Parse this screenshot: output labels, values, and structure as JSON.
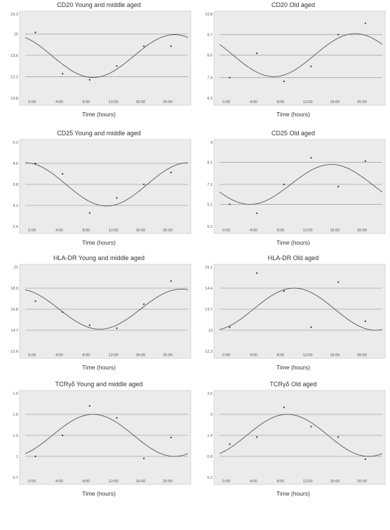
{
  "chart_data": [
    {
      "type": "scatter",
      "title": "CD20 Young and middle aged",
      "xlabel": "Time (hours)",
      "ylabel": "",
      "xticks": [
        "0:00",
        "4:00",
        "8:00",
        "12:00",
        "16:00",
        "20:00"
      ],
      "yticks": [
        10.8,
        12.2,
        13.6,
        15,
        16.3
      ],
      "xlim": [
        0,
        24
      ],
      "ylim": [
        10.8,
        16.3
      ],
      "grid": "horizontal",
      "points": {
        "x": [
          1.5,
          5.5,
          9.5,
          13.5,
          17.5,
          21.5
        ],
        "y": [
          15.1,
          12.4,
          12.0,
          12.9,
          14.2,
          14.2
        ]
      },
      "fit": {
        "mesor": 13.55,
        "amplitude": 1.4,
        "acrophase": 22.0,
        "period": 24
      }
    },
    {
      "type": "scatter",
      "title": "CD20 Old aged",
      "xlabel": "Time (hours)",
      "ylabel": "",
      "xticks": [
        "0:00",
        "4:00",
        "8:00",
        "12:00",
        "16:00",
        "20:00"
      ],
      "yticks": [
        6.3,
        7.4,
        8.6,
        9.7,
        10.8
      ],
      "xlim": [
        0,
        24
      ],
      "ylim": [
        6.3,
        10.8
      ],
      "grid": "horizontal",
      "points": {
        "x": [
          1.5,
          5.5,
          9.5,
          13.5,
          17.5,
          21.5
        ],
        "y": [
          7.4,
          8.7,
          7.2,
          8.0,
          9.7,
          10.3
        ]
      },
      "fit": {
        "mesor": 8.6,
        "amplitude": 1.15,
        "acrophase": 20.0,
        "period": 24
      }
    },
    {
      "type": "scatter",
      "title": "CD25 Young and middle aged",
      "xlabel": "Time (hours)",
      "ylabel": "",
      "xticks": [
        "0:00",
        "4:00",
        "8:00",
        "12:00",
        "16:00",
        "20:00"
      ],
      "yticks": [
        2.4,
        3.1,
        3.8,
        4.5,
        5.2
      ],
      "xlim": [
        0,
        24
      ],
      "ylim": [
        2.4,
        5.2
      ],
      "grid": "horizontal",
      "points": {
        "x": [
          1.5,
          5.5,
          9.5,
          13.5,
          17.5,
          21.5
        ],
        "y": [
          4.5,
          4.15,
          2.85,
          3.35,
          3.8,
          4.2
        ]
      },
      "fit": {
        "mesor": 3.8,
        "amplitude": 0.72,
        "acrophase": 0.0,
        "period": 24
      }
    },
    {
      "type": "scatter",
      "title": "CD25 Old aged",
      "xlabel": "Time (hours)",
      "ylabel": "",
      "xticks": [
        "0:00",
        "4:00",
        "8:00",
        "12:00",
        "16:00",
        "20:00"
      ],
      "yticks": [
        5.2,
        6.2,
        7.1,
        8.1,
        9
      ],
      "xlim": [
        0,
        24
      ],
      "ylim": [
        5.2,
        9
      ],
      "grid": "horizontal",
      "points": {
        "x": [
          1.5,
          5.5,
          9.5,
          13.5,
          17.5,
          21.5
        ],
        "y": [
          6.2,
          5.8,
          7.1,
          8.3,
          7.0,
          8.15
        ]
      },
      "fit": {
        "mesor": 7.1,
        "amplitude": 0.9,
        "acrophase": 16.5,
        "period": 24
      }
    },
    {
      "type": "scatter",
      "title": "HLA-DR Young and middle aged",
      "xlabel": "Time (hours)",
      "ylabel": "",
      "xticks": [
        "0:00",
        "4:00",
        "8:00",
        "12:00",
        "16:00",
        "20:00"
      ],
      "yticks": [
        12.6,
        14.7,
        16.8,
        18.9,
        21
      ],
      "xlim": [
        0,
        24
      ],
      "ylim": [
        12.6,
        21
      ],
      "grid": "horizontal",
      "points": {
        "x": [
          1.5,
          5.5,
          9.5,
          13.5,
          17.5,
          21.5
        ],
        "y": [
          17.6,
          16.5,
          15.2,
          14.9,
          17.3,
          19.6
        ]
      },
      "fit": {
        "mesor": 16.8,
        "amplitude": 2.0,
        "acrophase": 23.0,
        "period": 24
      }
    },
    {
      "type": "scatter",
      "title": "HLA-DR Old aged",
      "xlabel": "Time (hours)",
      "ylabel": "",
      "xticks": [
        "0:00",
        "4:00",
        "8:00",
        "12:00",
        "16:00",
        "20:00"
      ],
      "yticks": [
        12.3,
        13,
        13.7,
        14.4,
        15.1
      ],
      "xlim": [
        0,
        24
      ],
      "ylim": [
        12.3,
        15.1
      ],
      "grid": "horizontal",
      "points": {
        "x": [
          1.5,
          5.5,
          9.5,
          13.5,
          17.5,
          21.5
        ],
        "y": [
          13.1,
          14.9,
          14.3,
          13.1,
          14.6,
          13.3
        ]
      },
      "fit": {
        "mesor": 13.7,
        "amplitude": 0.7,
        "acrophase": 11.0,
        "period": 24
      }
    },
    {
      "type": "scatter",
      "title": "TCRγδ Young and middle aged",
      "xlabel": "Time (hours)",
      "ylabel": "",
      "xticks": [
        "0:00",
        "4:00",
        "8:00",
        "12:00",
        "16:00",
        "20:00"
      ],
      "yticks": [
        0.7,
        1,
        1.3,
        1.6,
        1.9
      ],
      "xlim": [
        0,
        24
      ],
      "ylim": [
        0.7,
        1.9
      ],
      "grid": "horizontal",
      "points": {
        "x": [
          1.5,
          5.5,
          9.5,
          13.5,
          17.5,
          21.5
        ],
        "y": [
          1.0,
          1.3,
          1.72,
          1.55,
          0.97,
          1.27
        ]
      },
      "fit": {
        "mesor": 1.3,
        "amplitude": 0.3,
        "acrophase": 10.0,
        "period": 24
      }
    },
    {
      "type": "scatter",
      "title": "TCRγδ  Old aged",
      "xlabel": "Time (hours)",
      "ylabel": "",
      "xticks": [
        "0:00",
        "4:00",
        "8:00",
        "12:00",
        "16:00",
        "20:00"
      ],
      "yticks": [
        0.2,
        0.8,
        1.4,
        2,
        2.6
      ],
      "xlim": [
        0,
        24
      ],
      "ylim": [
        0.2,
        2.6
      ],
      "grid": "horizontal",
      "points": {
        "x": [
          1.5,
          5.5,
          9.5,
          13.5,
          17.5,
          21.5
        ],
        "y": [
          1.15,
          1.35,
          2.2,
          1.65,
          1.35,
          0.72
        ]
      },
      "fit": {
        "mesor": 1.4,
        "amplitude": 0.6,
        "acrophase": 10.0,
        "period": 24
      }
    }
  ],
  "colors": {
    "plot_bg": "#ebebeb",
    "grid": "#a6a6a6",
    "curve": "#555555",
    "point": "#333333",
    "frame": "#d0d0d0"
  }
}
